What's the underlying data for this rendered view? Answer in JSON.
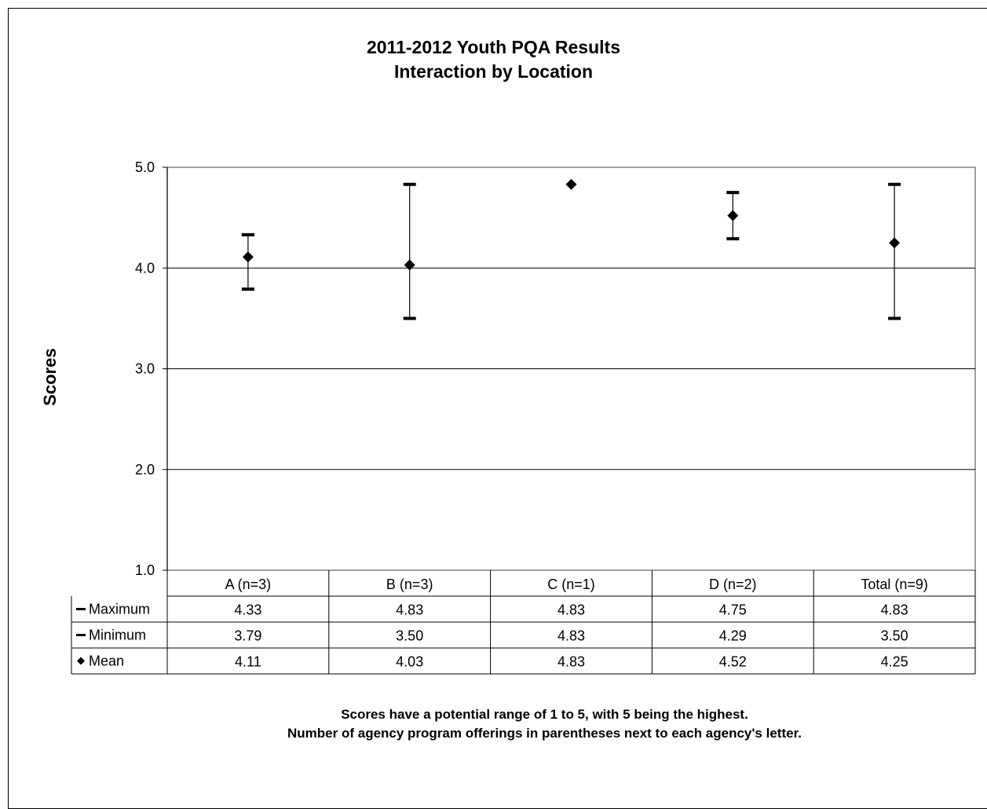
{
  "chart_data": {
    "type": "stock",
    "title": "2011-2012 Youth PQA Results",
    "subtitle": "Interaction by Location",
    "ylabel": "Scores",
    "ylim": [
      1.0,
      5.0
    ],
    "yticks": [
      "1.0",
      "2.0",
      "3.0",
      "4.0",
      "5.0"
    ],
    "grid": true,
    "categories": [
      "A (n=3)",
      "B (n=3)",
      "C (n=1)",
      "D (n=2)",
      "Total (n=9)"
    ],
    "series": [
      {
        "name": "Maximum",
        "marker": "dash",
        "values": [
          4.33,
          4.83,
          4.83,
          4.75,
          4.83
        ],
        "labels": [
          "4.33",
          "4.83",
          "4.83",
          "4.75",
          "4.83"
        ]
      },
      {
        "name": "Minimum",
        "marker": "dash",
        "values": [
          3.79,
          3.5,
          4.83,
          4.29,
          3.5
        ],
        "labels": [
          "3.79",
          "3.50",
          "4.83",
          "4.29",
          "3.50"
        ]
      },
      {
        "name": "Mean",
        "marker": "diamond",
        "values": [
          4.11,
          4.03,
          4.83,
          4.52,
          4.25
        ],
        "labels": [
          "4.11",
          "4.03",
          "4.83",
          "4.52",
          "4.25"
        ]
      }
    ],
    "footnotes": [
      "Scores have a potential range of 1 to 5, with 5 being the highest.",
      "Number of agency program offerings in parentheses next to each agency's letter."
    ]
  }
}
